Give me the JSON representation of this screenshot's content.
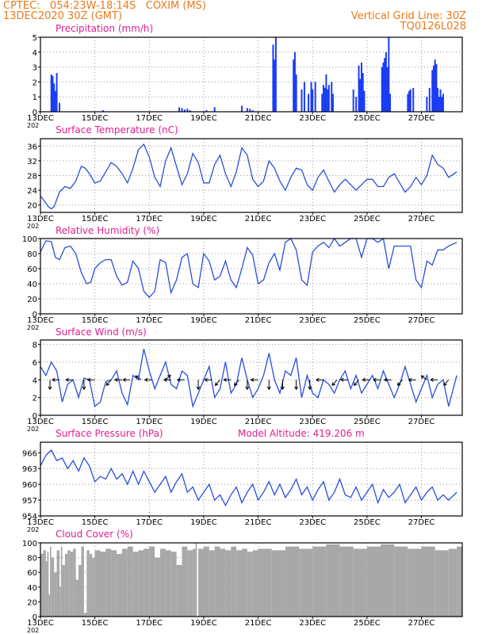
{
  "header": {
    "line1": "CPTEC:   054:23W-18:14S   COXIM (MS)",
    "line2": "13DEC2020 30Z (GMT)",
    "grid_note": "Vertical Grid Line: 30Z",
    "code": "TQ0126L028"
  },
  "colors": {
    "header_text": "#e87a1a",
    "panel_title": "#e0208f",
    "series_line": "#2a4fd8",
    "bar": "#1a3cf5",
    "cloud_fill": "#a8a8a8",
    "wind_arrow": "#000000",
    "grid": "#9a9a9a"
  },
  "x_axis": {
    "tick_labels": [
      "13DEC",
      "15DEC",
      "17DEC",
      "19DEC",
      "21DEC",
      "23DEC",
      "25DEC",
      "27DEC"
    ],
    "tick_days": [
      13,
      15,
      17,
      19,
      21,
      23,
      25,
      27
    ],
    "range_days": [
      13,
      28.5
    ],
    "year_fragment": "202"
  },
  "model_altitude": "Model Altitude: 419.206 m",
  "chart_data": [
    {
      "type": "bar",
      "title": "Precipitation (mm/h)",
      "ylim": [
        0,
        5
      ],
      "yticks": [
        0,
        1,
        2,
        3,
        4,
        5
      ],
      "x": [
        13.4,
        13.45,
        13.5,
        13.55,
        13.6,
        13.7,
        15.3,
        18.1,
        18.2,
        18.3,
        18.4,
        18.5,
        19.1,
        19.4,
        20.4,
        20.6,
        20.7,
        20.8,
        21.55,
        21.6,
        21.65,
        22.3,
        22.35,
        22.4,
        22.6,
        22.7,
        22.85,
        22.95,
        23.0,
        23.1,
        23.35,
        23.4,
        23.45,
        23.5,
        23.55,
        23.6,
        23.7,
        23.75,
        24.5,
        24.6,
        24.7,
        24.75,
        24.8,
        24.85,
        24.9,
        25.55,
        25.6,
        25.65,
        25.7,
        25.75,
        25.8,
        25.85,
        26.5,
        26.55,
        26.6,
        26.7,
        27.2,
        27.3,
        27.4,
        27.45,
        27.5,
        27.55,
        27.6,
        27.65,
        27.7,
        27.75,
        27.8
      ],
      "values": [
        2.5,
        2.4,
        1.9,
        1.4,
        2.6,
        0.6,
        0.1,
        0.3,
        0.25,
        0.15,
        0.2,
        0.1,
        0.1,
        0.3,
        0.4,
        0.25,
        0.2,
        0.1,
        4.5,
        3.5,
        5.0,
        3.5,
        4.0,
        2.5,
        1.5,
        2.0,
        1.2,
        2.0,
        1.5,
        2.0,
        1.2,
        1.8,
        1.6,
        2.5,
        1.5,
        1.8,
        2.0,
        1.2,
        1.5,
        1.0,
        3.1,
        2.2,
        3.3,
        2.6,
        1.4,
        3.0,
        3.3,
        3.6,
        4.0,
        3.0,
        5.0,
        1.2,
        1.2,
        1.4,
        1.5,
        1.6,
        1.0,
        1.6,
        2.8,
        3.1,
        3.5,
        3.2,
        1.6,
        1.0,
        1.5,
        1.0,
        1.2
      ]
    },
    {
      "type": "line",
      "title": "Surface Temperature (nC)",
      "ylim": [
        18,
        38
      ],
      "yticks": [
        20,
        24,
        28,
        32,
        36
      ],
      "x": [
        13.0,
        13.2,
        13.3,
        13.4,
        13.5,
        13.7,
        13.9,
        14.1,
        14.3,
        14.5,
        14.65,
        14.8,
        15.0,
        15.2,
        15.4,
        15.6,
        15.8,
        16.0,
        16.2,
        16.4,
        16.6,
        16.8,
        17.0,
        17.2,
        17.4,
        17.6,
        17.8,
        18.0,
        18.2,
        18.4,
        18.6,
        18.8,
        19.0,
        19.2,
        19.4,
        19.6,
        19.8,
        20.0,
        20.2,
        20.4,
        20.6,
        20.8,
        21.0,
        21.2,
        21.4,
        21.6,
        21.8,
        22.0,
        22.2,
        22.4,
        22.6,
        22.8,
        23.0,
        23.2,
        23.4,
        23.6,
        23.8,
        24.0,
        24.2,
        24.4,
        24.6,
        24.8,
        25.0,
        25.2,
        25.4,
        25.6,
        25.8,
        26.0,
        26.2,
        26.4,
        26.6,
        26.8,
        27.0,
        27.2,
        27.4,
        27.6,
        27.8,
        28.0,
        28.3
      ],
      "values": [
        22.5,
        20.5,
        19.5,
        19.0,
        19.5,
        23.5,
        25.0,
        24.5,
        26.5,
        30.5,
        30.0,
        28.5,
        26.0,
        26.5,
        29.0,
        31.5,
        30.5,
        28.5,
        26.0,
        30.0,
        35.0,
        36.5,
        33.0,
        27.5,
        25.0,
        32.0,
        35.5,
        30.5,
        25.5,
        28.5,
        34.0,
        31.5,
        26.0,
        26.0,
        31.0,
        33.5,
        28.5,
        25.0,
        29.0,
        35.5,
        33.5,
        27.0,
        25.0,
        26.5,
        32.0,
        30.0,
        26.5,
        24.0,
        27.5,
        30.0,
        29.5,
        25.5,
        24.0,
        27.5,
        29.5,
        26.5,
        23.5,
        25.5,
        27.0,
        25.5,
        24.0,
        25.5,
        27.0,
        27.0,
        25.0,
        25.0,
        27.5,
        28.5,
        26.0,
        23.5,
        25.0,
        27.5,
        25.5,
        28.0,
        33.5,
        31.0,
        30.0,
        27.5,
        29.0
      ]
    },
    {
      "type": "line",
      "title": "Relative Humidity (%)",
      "ylim": [
        0,
        100
      ],
      "yticks": [
        0,
        20,
        40,
        60,
        80,
        100
      ],
      "x": [
        13.0,
        13.2,
        13.4,
        13.55,
        13.7,
        13.9,
        14.1,
        14.3,
        14.5,
        14.7,
        14.85,
        15.0,
        15.2,
        15.4,
        15.6,
        15.8,
        16.0,
        16.2,
        16.4,
        16.6,
        16.8,
        17.0,
        17.2,
        17.4,
        17.6,
        17.8,
        18.0,
        18.2,
        18.4,
        18.6,
        18.8,
        19.0,
        19.2,
        19.4,
        19.6,
        19.8,
        20.0,
        20.2,
        20.4,
        20.6,
        20.8,
        21.0,
        21.2,
        21.4,
        21.6,
        21.8,
        22.0,
        22.2,
        22.4,
        22.6,
        22.8,
        23.0,
        23.2,
        23.4,
        23.6,
        23.8,
        24.0,
        24.2,
        24.4,
        24.6,
        24.8,
        25.0,
        25.2,
        25.4,
        25.6,
        25.8,
        26.0,
        26.2,
        26.4,
        26.6,
        26.8,
        27.0,
        27.2,
        27.4,
        27.6,
        27.8,
        28.0,
        28.3
      ],
      "values": [
        82,
        97,
        96,
        75,
        72,
        88,
        90,
        80,
        55,
        40,
        42,
        60,
        68,
        72,
        72,
        50,
        38,
        42,
        70,
        60,
        30,
        22,
        30,
        72,
        68,
        28,
        45,
        75,
        80,
        40,
        35,
        80,
        70,
        45,
        50,
        70,
        45,
        35,
        60,
        88,
        78,
        40,
        45,
        68,
        80,
        58,
        95,
        100,
        85,
        45,
        38,
        82,
        90,
        95,
        88,
        100,
        90,
        95,
        100,
        100,
        75,
        100,
        100,
        95,
        100,
        60,
        90,
        90,
        90,
        90,
        45,
        35,
        70,
        65,
        85,
        85,
        90,
        95
      ]
    },
    {
      "type": "line",
      "title": "Surface Wind (m/s)",
      "ylim": [
        0,
        8.5
      ],
      "yticks": [
        0,
        2,
        4,
        6,
        8
      ],
      "x": [
        13.0,
        13.2,
        13.4,
        13.6,
        13.8,
        14.0,
        14.2,
        14.4,
        14.6,
        14.8,
        15.0,
        15.2,
        15.4,
        15.6,
        15.8,
        16.0,
        16.2,
        16.4,
        16.6,
        16.8,
        17.0,
        17.2,
        17.4,
        17.6,
        17.8,
        18.0,
        18.2,
        18.4,
        18.6,
        18.8,
        19.0,
        19.2,
        19.4,
        19.6,
        19.8,
        20.0,
        20.2,
        20.4,
        20.6,
        20.8,
        21.0,
        21.2,
        21.4,
        21.6,
        21.8,
        22.0,
        22.2,
        22.4,
        22.6,
        22.8,
        23.0,
        23.2,
        23.4,
        23.6,
        23.8,
        24.0,
        24.2,
        24.4,
        24.6,
        24.8,
        25.0,
        25.2,
        25.4,
        25.6,
        25.8,
        26.0,
        26.2,
        26.4,
        26.6,
        26.8,
        27.0,
        27.2,
        27.4,
        27.6,
        27.8,
        28.0,
        28.3
      ],
      "values": [
        5.5,
        4.5,
        6.0,
        5.0,
        1.5,
        3.5,
        4.0,
        2.0,
        4.2,
        4.0,
        1.0,
        1.5,
        3.8,
        4.0,
        5.0,
        2.5,
        1.2,
        4.5,
        4.0,
        7.5,
        5.0,
        3.0,
        4.5,
        6.0,
        3.5,
        3.0,
        5.0,
        4.5,
        1.0,
        2.5,
        4.0,
        5.5,
        2.0,
        3.0,
        6.0,
        2.5,
        3.5,
        6.5,
        4.0,
        2.0,
        3.0,
        4.5,
        7.0,
        4.0,
        2.5,
        5.0,
        4.5,
        6.5,
        2.0,
        4.5,
        2.5,
        2.0,
        4.0,
        3.5,
        2.5,
        4.0,
        5.0,
        3.0,
        4.5,
        2.5,
        3.5,
        4.5,
        3.0,
        5.0,
        3.5,
        2.0,
        3.5,
        5.5,
        3.5,
        1.5,
        3.0,
        4.5,
        2.0,
        3.5,
        4.0,
        1.0,
        4.5
      ]
    },
    {
      "type": "line",
      "title": "Surface Pressure (hPa)",
      "ylim": [
        954,
        968
      ],
      "yticks": [
        954,
        957,
        960,
        963,
        966
      ],
      "x": [
        13.0,
        13.2,
        13.4,
        13.6,
        13.8,
        14.0,
        14.2,
        14.4,
        14.6,
        14.8,
        15.0,
        15.2,
        15.4,
        15.6,
        15.8,
        16.0,
        16.2,
        16.4,
        16.6,
        16.8,
        17.0,
        17.2,
        17.4,
        17.6,
        17.8,
        18.0,
        18.2,
        18.4,
        18.6,
        18.8,
        19.0,
        19.2,
        19.4,
        19.6,
        19.8,
        20.0,
        20.2,
        20.4,
        20.6,
        20.8,
        21.0,
        21.2,
        21.4,
        21.6,
        21.8,
        22.0,
        22.2,
        22.4,
        22.6,
        22.8,
        23.0,
        23.2,
        23.4,
        23.6,
        23.8,
        24.0,
        24.2,
        24.4,
        24.6,
        24.8,
        25.0,
        25.2,
        25.4,
        25.6,
        25.8,
        26.0,
        26.2,
        26.4,
        26.6,
        26.8,
        27.0,
        27.2,
        27.4,
        27.6,
        27.8,
        28.0,
        28.3
      ],
      "values": [
        963.5,
        965.5,
        966.5,
        964.5,
        965.0,
        963.0,
        964.5,
        962.5,
        965.0,
        963.5,
        960.5,
        961.5,
        961.0,
        963.0,
        961.0,
        962.0,
        960.0,
        962.5,
        960.0,
        962.5,
        960.5,
        958.5,
        960.0,
        961.5,
        958.5,
        960.5,
        962.0,
        958.5,
        959.5,
        957.0,
        958.5,
        960.0,
        957.0,
        958.0,
        956.0,
        958.0,
        959.5,
        956.5,
        958.5,
        960.0,
        957.0,
        958.5,
        960.5,
        958.0,
        960.0,
        957.5,
        959.0,
        961.0,
        958.0,
        959.5,
        957.0,
        959.0,
        960.5,
        957.0,
        958.5,
        961.0,
        958.0,
        957.5,
        959.5,
        957.0,
        958.5,
        960.0,
        956.5,
        959.0,
        957.5,
        958.5,
        960.0,
        956.5,
        958.0,
        959.5,
        957.0,
        958.5,
        959.5,
        957.0,
        958.0,
        957.0,
        958.5
      ]
    },
    {
      "type": "area",
      "title": "Cloud Cover (%)",
      "ylim": [
        0,
        100
      ],
      "yticks": [
        0,
        20,
        40,
        60,
        80,
        100
      ],
      "x": [
        13.0,
        13.1,
        13.2,
        13.25,
        13.3,
        13.35,
        13.4,
        13.5,
        13.6,
        13.7,
        13.75,
        13.8,
        13.9,
        14.0,
        14.1,
        14.2,
        14.3,
        14.4,
        14.5,
        14.6,
        14.7,
        14.8,
        14.9,
        15.0,
        15.2,
        15.4,
        15.6,
        15.8,
        16.0,
        16.2,
        16.4,
        16.6,
        16.8,
        17.0,
        17.2,
        17.4,
        17.6,
        17.8,
        18.0,
        18.2,
        18.4,
        18.6,
        18.7,
        18.75,
        18.8,
        19.0,
        19.2,
        19.4,
        19.6,
        19.8,
        20.0,
        20.2,
        20.4,
        20.6,
        20.8,
        21.0,
        21.5,
        22.0,
        22.5,
        23.0,
        23.5,
        24.0,
        24.5,
        25.0,
        25.5,
        26.0,
        26.5,
        27.0,
        27.5,
        28.0,
        28.3
      ],
      "values": [
        85,
        90,
        75,
        88,
        30,
        95,
        80,
        60,
        90,
        40,
        95,
        70,
        85,
        90,
        88,
        92,
        50,
        70,
        95,
        5,
        90,
        85,
        80,
        90,
        88,
        92,
        90,
        85,
        92,
        95,
        88,
        90,
        92,
        95,
        80,
        92,
        90,
        88,
        70,
        95,
        90,
        92,
        100,
        0,
        92,
        95,
        90,
        95,
        92,
        90,
        95,
        90,
        92,
        88,
        90,
        92,
        90,
        95,
        92,
        95,
        98,
        95,
        92,
        95,
        98,
        95,
        92,
        95,
        90,
        92,
        95
      ]
    }
  ]
}
